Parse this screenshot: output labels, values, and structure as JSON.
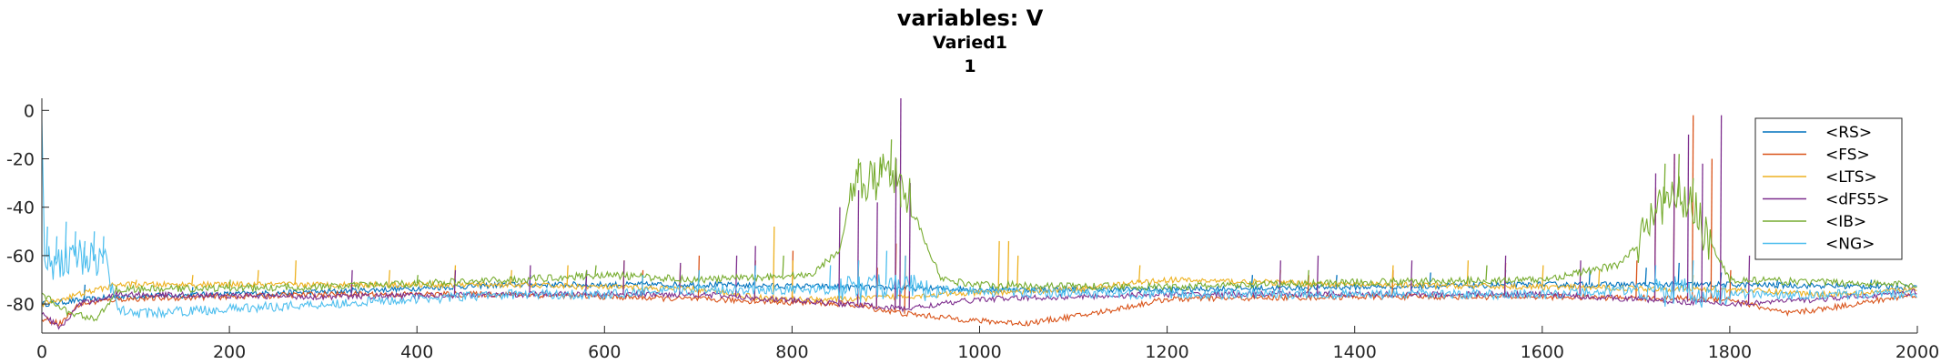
{
  "chart_data": {
    "type": "line",
    "title": "variables: V",
    "subtitle": "Varied1",
    "subtitle2": "1",
    "xlabel": "",
    "ylabel": "",
    "xlim": [
      0,
      2000
    ],
    "ylim": [
      -92,
      5
    ],
    "xticks": [
      0,
      200,
      400,
      600,
      800,
      1000,
      1200,
      1400,
      1600,
      1800,
      2000
    ],
    "yticks": [
      0,
      -20,
      -40,
      -60,
      -80
    ],
    "legend_position": "top-right",
    "grid": false,
    "series": [
      {
        "name": "<RS>",
        "color": "#0072BD",
        "baseline": [
          [
            0,
            -80
          ],
          [
            80,
            -77
          ],
          [
            300,
            -75
          ],
          [
            500,
            -72
          ],
          [
            700,
            -72
          ],
          [
            860,
            -73
          ],
          [
            1000,
            -74
          ],
          [
            1200,
            -74
          ],
          [
            1400,
            -73
          ],
          [
            1600,
            -72
          ],
          [
            1800,
            -72
          ],
          [
            2000,
            -73
          ]
        ],
        "spikes": [
          [
            45,
            -72
          ],
          [
            160,
            -73
          ],
          [
            330,
            -72
          ],
          [
            440,
            -70
          ],
          [
            520,
            -68
          ],
          [
            580,
            -67
          ],
          [
            640,
            -68
          ],
          [
            700,
            -66
          ],
          [
            760,
            -68
          ],
          [
            1290,
            -68
          ],
          [
            1380,
            -68
          ],
          [
            1480,
            -67
          ],
          [
            1560,
            -66
          ],
          [
            1650,
            -66
          ],
          [
            1710,
            -65
          ],
          [
            1745,
            -63
          ],
          [
            1790,
            -67
          ],
          [
            1850,
            -70
          ],
          [
            1950,
            -70
          ]
        ]
      },
      {
        "name": "<FS>",
        "color": "#D95319",
        "baseline": [
          [
            0,
            -86
          ],
          [
            20,
            -88
          ],
          [
            40,
            -80
          ],
          [
            80,
            -78
          ],
          [
            300,
            -76
          ],
          [
            500,
            -76
          ],
          [
            700,
            -78
          ],
          [
            860,
            -80
          ],
          [
            920,
            -84
          ],
          [
            1000,
            -87
          ],
          [
            1050,
            -88
          ],
          [
            1120,
            -84
          ],
          [
            1200,
            -78
          ],
          [
            1400,
            -77
          ],
          [
            1600,
            -77
          ],
          [
            1800,
            -78
          ],
          [
            1860,
            -84
          ],
          [
            1900,
            -82
          ],
          [
            2000,
            -76
          ]
        ],
        "spikes": [
          [
            640,
            -66
          ],
          [
            700,
            -60
          ],
          [
            760,
            -62
          ],
          [
            800,
            -58
          ],
          [
            870,
            -62
          ],
          [
            890,
            -65
          ],
          [
            910,
            -55
          ],
          [
            920,
            -60
          ],
          [
            1350,
            -68
          ],
          [
            1440,
            -66
          ],
          [
            1560,
            -63
          ],
          [
            1700,
            -62
          ],
          [
            1720,
            -32
          ],
          [
            1740,
            -18
          ],
          [
            1760,
            -2
          ],
          [
            1780,
            -20
          ],
          [
            1800,
            -66
          ]
        ]
      },
      {
        "name": "<LTS>",
        "color": "#EDB120",
        "baseline": [
          [
            0,
            -80
          ],
          [
            80,
            -72
          ],
          [
            300,
            -72
          ],
          [
            500,
            -72
          ],
          [
            700,
            -74
          ],
          [
            780,
            -78
          ],
          [
            860,
            -78
          ],
          [
            960,
            -76
          ],
          [
            1100,
            -74
          ],
          [
            1200,
            -70
          ],
          [
            1400,
            -72
          ],
          [
            1600,
            -73
          ],
          [
            1800,
            -74
          ],
          [
            1900,
            -76
          ],
          [
            2000,
            -74
          ]
        ],
        "spikes": [
          [
            100,
            -70
          ],
          [
            160,
            -68
          ],
          [
            230,
            -66
          ],
          [
            270,
            -62
          ],
          [
            370,
            -66
          ],
          [
            440,
            -64
          ],
          [
            500,
            -66
          ],
          [
            560,
            -64
          ],
          [
            620,
            -62
          ],
          [
            680,
            -64
          ],
          [
            780,
            -48
          ],
          [
            800,
            -62
          ],
          [
            1020,
            -54
          ],
          [
            1030,
            -54
          ],
          [
            1040,
            -60
          ],
          [
            1170,
            -64
          ],
          [
            1320,
            -66
          ],
          [
            1440,
            -64
          ],
          [
            1520,
            -62
          ],
          [
            1600,
            -64
          ],
          [
            1660,
            -66
          ],
          [
            1760,
            -68
          ]
        ]
      },
      {
        "name": "<dFS5>",
        "color": "#7E2F8E",
        "baseline": [
          [
            0,
            -84
          ],
          [
            20,
            -90
          ],
          [
            40,
            -80
          ],
          [
            80,
            -76
          ],
          [
            300,
            -77
          ],
          [
            500,
            -76
          ],
          [
            700,
            -76
          ],
          [
            860,
            -80
          ],
          [
            920,
            -82
          ],
          [
            1000,
            -78
          ],
          [
            1200,
            -76
          ],
          [
            1400,
            -76
          ],
          [
            1600,
            -76
          ],
          [
            1800,
            -80
          ],
          [
            1900,
            -78
          ],
          [
            2000,
            -75
          ]
        ],
        "spikes": [
          [
            330,
            -66
          ],
          [
            440,
            -66
          ],
          [
            520,
            -64
          ],
          [
            580,
            -66
          ],
          [
            620,
            -62
          ],
          [
            680,
            -63
          ],
          [
            740,
            -60
          ],
          [
            760,
            -56
          ],
          [
            850,
            -40
          ],
          [
            870,
            -33
          ],
          [
            890,
            -38
          ],
          [
            910,
            -20
          ],
          [
            915,
            5
          ],
          [
            925,
            -30
          ],
          [
            1320,
            -62
          ],
          [
            1360,
            -60
          ],
          [
            1460,
            -62
          ],
          [
            1560,
            -60
          ],
          [
            1640,
            -62
          ],
          [
            1720,
            -26
          ],
          [
            1740,
            -18
          ],
          [
            1755,
            -10
          ],
          [
            1770,
            -22
          ],
          [
            1790,
            -2
          ],
          [
            1820,
            -60
          ]
        ]
      },
      {
        "name": "<IB>",
        "color": "#77AC30",
        "baseline": [
          [
            0,
            -76
          ],
          [
            30,
            -84
          ],
          [
            60,
            -86
          ],
          [
            80,
            -74
          ],
          [
            300,
            -73
          ],
          [
            500,
            -70
          ],
          [
            600,
            -68
          ],
          [
            700,
            -70
          ],
          [
            820,
            -68
          ],
          [
            850,
            -58
          ],
          [
            860,
            -40
          ],
          [
            870,
            -30
          ],
          [
            880,
            -28
          ],
          [
            900,
            -26
          ],
          [
            920,
            -30
          ],
          [
            935,
            -48
          ],
          [
            960,
            -70
          ],
          [
            1000,
            -72
          ],
          [
            1200,
            -73
          ],
          [
            1400,
            -71
          ],
          [
            1600,
            -70
          ],
          [
            1680,
            -64
          ],
          [
            1700,
            -56
          ],
          [
            1720,
            -42
          ],
          [
            1740,
            -35
          ],
          [
            1760,
            -38
          ],
          [
            1780,
            -55
          ],
          [
            1800,
            -70
          ],
          [
            2000,
            -72
          ]
        ],
        "spikes": [
          [
            200,
            -70
          ],
          [
            400,
            -68
          ],
          [
            580,
            -66
          ],
          [
            590,
            -64
          ],
          [
            790,
            -60
          ],
          [
            870,
            -20
          ],
          [
            895,
            -22
          ],
          [
            905,
            -12
          ],
          [
            915,
            -40
          ],
          [
            1350,
            -66
          ],
          [
            1540,
            -64
          ],
          [
            1730,
            -22
          ],
          [
            1745,
            -18
          ],
          [
            1760,
            -28
          ]
        ]
      },
      {
        "name": "<NG>",
        "color": "#4DBEEE",
        "baseline": [
          [
            0,
            -10
          ],
          [
            3,
            -60
          ],
          [
            10,
            -62
          ],
          [
            40,
            -60
          ],
          [
            70,
            -64
          ],
          [
            80,
            -82
          ],
          [
            100,
            -84
          ],
          [
            200,
            -82
          ],
          [
            300,
            -80
          ],
          [
            400,
            -78
          ],
          [
            500,
            -76
          ],
          [
            600,
            -76
          ],
          [
            700,
            -74
          ],
          [
            800,
            -74
          ],
          [
            860,
            -74
          ],
          [
            900,
            -72
          ],
          [
            960,
            -74
          ],
          [
            1000,
            -75
          ],
          [
            1200,
            -76
          ],
          [
            1400,
            -76
          ],
          [
            1600,
            -76
          ],
          [
            1700,
            -74
          ],
          [
            1800,
            -76
          ],
          [
            2000,
            -76
          ]
        ],
        "spikes": [
          [
            5,
            -48
          ],
          [
            15,
            -52
          ],
          [
            25,
            -46
          ],
          [
            35,
            -50
          ],
          [
            45,
            -54
          ],
          [
            55,
            -50
          ],
          [
            65,
            -52
          ],
          [
            640,
            -68
          ],
          [
            700,
            -66
          ],
          [
            760,
            -64
          ],
          [
            840,
            -64
          ],
          [
            870,
            -62
          ],
          [
            900,
            -58
          ],
          [
            920,
            -60
          ],
          [
            1720,
            -64
          ],
          [
            1760,
            -62
          ]
        ]
      }
    ]
  }
}
